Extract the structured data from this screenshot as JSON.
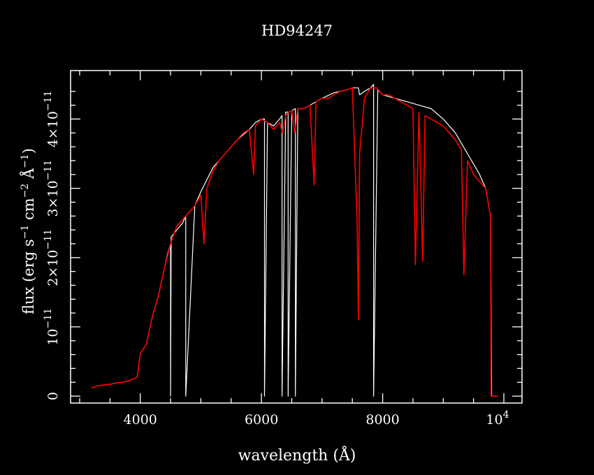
{
  "chart_data": {
    "type": "line",
    "title": "HD94247",
    "xlabel": "wavelength (Å)",
    "ylabel_parts": {
      "prefix": "flux (erg s",
      "e1": "−1",
      "mid1": " cm",
      "e2": "−2",
      "mid2": " Å",
      "e3": "−1",
      "suffix": ")"
    },
    "xlim": [
      2850,
      10300
    ],
    "ylim": [
      -1e-12,
      4.7e-11
    ],
    "x_ticks": [
      {
        "value": 4000,
        "label": "4000"
      },
      {
        "value": 6000,
        "label": "6000"
      },
      {
        "value": 8000,
        "label": "8000"
      }
    ],
    "x_tick_last": {
      "value": 10000,
      "base": "10",
      "exp": "4"
    },
    "y_ticks": [
      {
        "value": 0,
        "label": "0",
        "exp": ""
      },
      {
        "value": 1e-11,
        "label": "10",
        "exp": "−11"
      },
      {
        "value": 2e-11,
        "label": "2×10",
        "exp": "−11"
      },
      {
        "value": 3e-11,
        "label": "3×10",
        "exp": "−11"
      },
      {
        "value": 4e-11,
        "label": "4×10",
        "exp": "−11"
      }
    ],
    "series": [
      {
        "color": "#ffffff",
        "x": [
          3200,
          3300,
          3400,
          3500,
          3600,
          3700,
          3800,
          3900,
          3950,
          4000,
          4050,
          4100,
          4200,
          4300,
          4400,
          4450,
          4500,
          4500,
          4510,
          4700,
          4750,
          4750,
          4900,
          5000,
          5200,
          5400,
          5600,
          5800,
          5900,
          6000,
          6050,
          6050,
          6100,
          6200,
          6300,
          6340,
          6340,
          6400,
          6440,
          6440,
          6500,
          6560,
          6560,
          6600,
          6700,
          6800,
          6900,
          7000,
          7200,
          7400,
          7500,
          7580,
          7600,
          7620,
          7700,
          7800,
          7850,
          7850,
          7920,
          7920,
          8000,
          8200,
          8400,
          8600,
          8800,
          9000,
          9200,
          9400,
          9600,
          9700,
          9780,
          9800,
          9900
        ],
        "y": [
          1.2e-12,
          1.5e-12,
          1.6e-12,
          1.7e-12,
          1.9e-12,
          2e-12,
          2.2e-12,
          2.5e-12,
          2.8e-12,
          6.2e-12,
          6.8e-12,
          7.5e-12,
          1.15e-11,
          1.45e-11,
          1.85e-11,
          2.05e-11,
          2.2e-11,
          0,
          2.3e-11,
          2.5e-11,
          2.6e-11,
          0,
          2.75e-11,
          2.95e-11,
          3.3e-11,
          3.5e-11,
          3.7e-11,
          3.85e-11,
          3.95e-11,
          4e-11,
          4e-11,
          0,
          3.95e-11,
          3.9e-11,
          4e-11,
          4.05e-11,
          0,
          4.1e-11,
          4.1e-11,
          0,
          4.12e-11,
          4.15e-11,
          0,
          4.15e-11,
          4.15e-11,
          4.2e-11,
          4.25e-11,
          4.3e-11,
          4.38e-11,
          4.42e-11,
          4.45e-11,
          4.45e-11,
          4.45e-11,
          4.35e-11,
          4.4e-11,
          4.45e-11,
          4.5e-11,
          0,
          4.42e-11,
          4.42e-11,
          4.35e-11,
          4.3e-11,
          4.25e-11,
          4.2e-11,
          4.15e-11,
          4e-11,
          3.8e-11,
          3.5e-11,
          3.2e-11,
          3e-11,
          2.6e-11,
          0,
          0
        ]
      },
      {
        "color": "#ff0000",
        "x": [
          3200,
          3300,
          3400,
          3500,
          3600,
          3700,
          3800,
          3900,
          3950,
          4000,
          4050,
          4100,
          4200,
          4300,
          4400,
          4500,
          4600,
          4700,
          4800,
          4900,
          5000,
          5050,
          5100,
          5200,
          5300,
          5400,
          5500,
          5600,
          5700,
          5800,
          5870,
          5900,
          5950,
          6000,
          6100,
          6200,
          6300,
          6350,
          6400,
          6450,
          6500,
          6550,
          6600,
          6700,
          6800,
          6870,
          6900,
          7000,
          7100,
          7200,
          7300,
          7400,
          7500,
          7580,
          7600,
          7620,
          7700,
          7800,
          7900,
          8000,
          8100,
          8200,
          8300,
          8400,
          8500,
          8540,
          8600,
          8660,
          8700,
          8800,
          8900,
          9000,
          9100,
          9200,
          9300,
          9340,
          9400,
          9500,
          9600,
          9700,
          9780,
          9790,
          9800,
          9900
        ],
        "y": [
          1.2e-12,
          1.5e-12,
          1.6e-12,
          1.7e-12,
          1.9e-12,
          2e-12,
          2.2e-12,
          2.5e-12,
          2.8e-12,
          6.2e-12,
          6.8e-12,
          7.5e-12,
          1.15e-11,
          1.45e-11,
          1.85e-11,
          2.2e-11,
          2.45e-11,
          2.55e-11,
          2.65e-11,
          2.75e-11,
          2.9e-11,
          2.2e-11,
          3e-11,
          3.25e-11,
          3.4e-11,
          3.5e-11,
          3.6e-11,
          3.7e-11,
          3.8e-11,
          3.85e-11,
          3.2e-11,
          3.9e-11,
          3.95e-11,
          4e-11,
          3.95e-11,
          3.85e-11,
          3.95e-11,
          3.8e-11,
          4.05e-11,
          4.1e-11,
          4.12e-11,
          3.8e-11,
          4.15e-11,
          4.15e-11,
          4.2e-11,
          3.05e-11,
          4.25e-11,
          4.3e-11,
          4.3e-11,
          4.35e-11,
          4.4e-11,
          4.42e-11,
          4.45e-11,
          2.5e-11,
          1.1e-11,
          3.5e-11,
          4.3e-11,
          4.45e-11,
          4.45e-11,
          4.35e-11,
          4.35e-11,
          4.3e-11,
          4.25e-11,
          4.2e-11,
          4.15e-11,
          1.9e-11,
          4.1e-11,
          1.95e-11,
          4.05e-11,
          4e-11,
          3.95e-11,
          3.9e-11,
          3.8e-11,
          3.7e-11,
          3.55e-11,
          1.75e-11,
          3.4e-11,
          3.2e-11,
          3.1e-11,
          3e-11,
          2.6e-11,
          0,
          0,
          0
        ]
      }
    ]
  }
}
